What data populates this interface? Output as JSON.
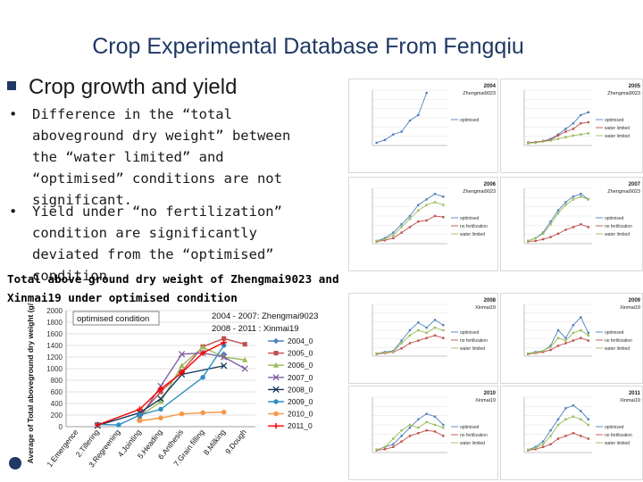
{
  "slide": {
    "title": "Crop Experimental Database From Fengqiu",
    "heading": "Crop growth and yield",
    "bullets": [
      "Difference in the “total aboveground dry weight” between the “water limited” and “optimised” conditions are not significant.",
      "Yield under “no fertilization” condition are significantly deviated from the “optimised” condition"
    ],
    "caption": "Total above ground dry weight of Zhengmai9023 and Xinmai19 under optimised condition"
  },
  "chart_data": [
    {
      "type": "line",
      "title": "",
      "annotation_box": "optimised condition",
      "annotation_lines": [
        "2004 - 2007: Zhengmai9023",
        "2008 - 2011 : Xinmai19"
      ],
      "ylabel": "Average of Total aboveground dry weight (g/m²)",
      "xlabel": "",
      "ylim": [
        0,
        2000
      ],
      "yticks": [
        0,
        200,
        400,
        600,
        800,
        1000,
        1200,
        1400,
        1600,
        1800,
        2000
      ],
      "grid": true,
      "legend_position": "right",
      "categories": [
        "1.Emergence",
        "2.Tillering",
        "3.Regreening",
        "4.Jointing",
        "5.Heading",
        "6.Anthesis",
        "7.Grain filling",
        "8.Milking",
        "9.Dough"
      ],
      "series": [
        {
          "name": "2004_0",
          "color": "#4f81bd",
          "marker": "diamond",
          "values": [
            null,
            null,
            null,
            null,
            null,
            null,
            null,
            1250,
            null
          ]
        },
        {
          "name": "2005_0",
          "color": "#c0504d",
          "marker": "square",
          "values": [
            null,
            null,
            null,
            200,
            600,
            950,
            1380,
            1520,
            1420
          ]
        },
        {
          "name": "2006_0",
          "color": "#9bbb59",
          "marker": "triangle",
          "values": [
            null,
            null,
            null,
            180,
            430,
            1050,
            1370,
            1200,
            1150
          ]
        },
        {
          "name": "2007_0",
          "color": "#7f5fa0",
          "marker": "x",
          "values": [
            null,
            null,
            null,
            150,
            700,
            1250,
            1270,
            1200,
            1000
          ]
        },
        {
          "name": "2008_0",
          "color": "#17375e",
          "marker": "x",
          "values": [
            null,
            20,
            null,
            240,
            480,
            900,
            null,
            1050,
            null
          ]
        },
        {
          "name": "2009_0",
          "color": "#2c8fbf",
          "marker": "circle",
          "values": [
            null,
            40,
            30,
            200,
            300,
            null,
            850,
            1400,
            null
          ]
        },
        {
          "name": "2010_0",
          "color": "#f79646",
          "marker": "circle",
          "values": [
            null,
            null,
            null,
            100,
            150,
            220,
            240,
            250,
            null
          ]
        },
        {
          "name": "2011_0",
          "color": "#ff0000",
          "marker": "cross",
          "values": [
            null,
            30,
            null,
            300,
            650,
            930,
            1270,
            1450,
            null
          ]
        }
      ]
    }
  ],
  "thumbnails": [
    {
      "year": "2004",
      "variety": "Zhengmai9023",
      "legend": [
        "optimised"
      ]
    },
    {
      "year": "2005",
      "variety": "Zhengmai9023",
      "legend": [
        "optimised",
        "water limited",
        "water limited"
      ]
    },
    {
      "year": "2006",
      "variety": "Zhengmai9023",
      "legend": [
        "optimised",
        "no fertilization",
        "water limited"
      ]
    },
    {
      "year": "2007",
      "variety": "Zhengmai9023",
      "legend": [
        "optimised",
        "no fertilization",
        "water limited"
      ]
    },
    {
      "year": "2008",
      "variety": "Xinmai19",
      "legend": [
        "optimised",
        "no fertilization",
        "water limited"
      ]
    },
    {
      "year": "2009",
      "variety": "Xinmai19",
      "legend": [
        "optimised",
        "no fertilization",
        "water limited"
      ]
    },
    {
      "year": "2010",
      "variety": "Xinmai19",
      "legend": [
        "optimised",
        "no fertilization",
        "water limited"
      ]
    },
    {
      "year": "2011",
      "variety": "Xinmai19",
      "legend": [
        "optimised",
        "no fertilization",
        "water limited"
      ]
    }
  ]
}
